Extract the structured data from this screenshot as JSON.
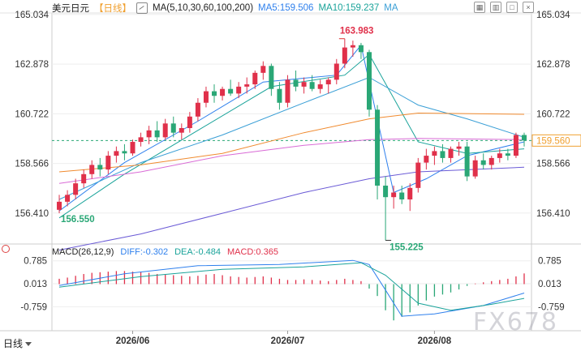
{
  "header": {
    "title": "美元日元",
    "period_tag": "【日线】",
    "ma_label": "MA(5,10,30,60,100,200)",
    "ma5": "MA5:159.506",
    "ma10": "MA10:159.237",
    "ma_more": "MA"
  },
  "macd_header": {
    "label": "MACD(26,12,9)",
    "diff": "DIFF:-0.302",
    "dea": "DEA:-0.484",
    "macd": "MACD:0.365"
  },
  "footer": {
    "period_selector": "日线",
    "watermark": "FX678"
  },
  "colors": {
    "up": "#e0304a",
    "down": "#2aa776",
    "ma5": "#2f80ed",
    "ma10": "#1aa39a",
    "ma30": "#3a9fd6",
    "ma60": "#f08a2e",
    "ma100": "#d96bd6",
    "ma200": "#6b5bd6",
    "current_price": "#f0a030"
  },
  "chart_data": {
    "type": "candlestick",
    "price_axis": {
      "ylim": [
        155.1,
        165.1
      ],
      "ticks": [
        "165.034",
        "162.878",
        "160.722",
        "158.566",
        "156.410"
      ],
      "tick_values": [
        165.034,
        162.878,
        160.722,
        158.566,
        156.41
      ]
    },
    "current_price": {
      "value": 159.56,
      "label": "159.560"
    },
    "annotations": [
      {
        "text": "163.983",
        "value": 163.983,
        "kind": "high"
      },
      {
        "text": "156.550",
        "value": 156.55,
        "kind": "low-start"
      },
      {
        "text": "155.225",
        "value": 155.225,
        "kind": "low"
      }
    ],
    "x_labels": [
      "2026/06",
      "2026/07",
      "2026/08"
    ],
    "x_label_positions": [
      9,
      28,
      46
    ],
    "candles": [
      [
        156.55,
        157.2,
        156.4,
        156.9
      ],
      [
        156.9,
        157.4,
        156.7,
        157.2
      ],
      [
        157.2,
        157.9,
        157.0,
        157.7
      ],
      [
        157.7,
        158.3,
        157.5,
        158.1
      ],
      [
        158.1,
        158.7,
        157.9,
        158.5
      ],
      [
        158.5,
        158.8,
        158.0,
        158.3
      ],
      [
        158.3,
        159.1,
        158.1,
        158.9
      ],
      [
        158.9,
        159.3,
        158.6,
        159.1
      ],
      [
        159.1,
        159.4,
        158.7,
        159.0
      ],
      [
        159.0,
        159.6,
        158.9,
        159.5
      ],
      [
        159.5,
        159.9,
        159.3,
        159.7
      ],
      [
        159.7,
        160.2,
        159.4,
        160.0
      ],
      [
        160.0,
        160.4,
        159.5,
        159.7
      ],
      [
        159.7,
        160.5,
        159.6,
        160.3
      ],
      [
        160.3,
        160.6,
        159.7,
        159.9
      ],
      [
        159.9,
        160.3,
        159.6,
        160.1
      ],
      [
        160.1,
        160.8,
        159.9,
        160.6
      ],
      [
        160.6,
        161.4,
        160.4,
        161.2
      ],
      [
        161.2,
        161.9,
        161.0,
        161.7
      ],
      [
        161.7,
        162.0,
        161.2,
        161.5
      ],
      [
        161.5,
        161.9,
        161.3,
        161.8
      ],
      [
        161.8,
        162.2,
        161.5,
        161.6
      ],
      [
        161.6,
        162.1,
        161.4,
        161.9
      ],
      [
        161.9,
        162.3,
        161.6,
        162.0
      ],
      [
        162.0,
        162.6,
        161.8,
        162.5
      ],
      [
        162.5,
        163.0,
        162.2,
        162.8
      ],
      [
        162.8,
        162.9,
        161.5,
        161.8
      ],
      [
        161.8,
        162.1,
        160.9,
        161.2
      ],
      [
        161.2,
        162.4,
        161.0,
        162.2
      ],
      [
        162.2,
        162.6,
        161.7,
        161.9
      ],
      [
        161.9,
        162.3,
        161.6,
        162.1
      ],
      [
        162.1,
        162.4,
        161.7,
        161.8
      ],
      [
        161.8,
        162.2,
        161.6,
        162.0
      ],
      [
        162.0,
        162.3,
        161.6,
        162.2
      ],
      [
        162.2,
        163.1,
        162.0,
        162.9
      ],
      [
        162.9,
        163.983,
        162.7,
        163.6
      ],
      [
        163.6,
        163.9,
        163.2,
        163.7
      ],
      [
        163.7,
        163.8,
        163.1,
        163.4
      ],
      [
        163.4,
        163.5,
        160.6,
        160.9
      ],
      [
        160.9,
        161.1,
        157.0,
        157.6
      ],
      [
        157.6,
        158.0,
        155.225,
        157.1
      ],
      [
        157.1,
        157.6,
        156.6,
        157.3
      ],
      [
        157.3,
        157.6,
        156.8,
        157.0
      ],
      [
        157.0,
        157.7,
        156.5,
        157.5
      ],
      [
        157.5,
        158.8,
        157.3,
        158.6
      ],
      [
        158.6,
        159.2,
        158.3,
        158.9
      ],
      [
        158.9,
        159.3,
        158.5,
        159.1
      ],
      [
        159.1,
        159.4,
        158.6,
        158.8
      ],
      [
        158.8,
        159.3,
        158.6,
        159.2
      ],
      [
        159.2,
        159.5,
        158.9,
        159.3
      ],
      [
        159.3,
        159.5,
        157.8,
        158.0
      ],
      [
        158.0,
        158.9,
        157.9,
        158.7
      ],
      [
        158.7,
        159.0,
        158.3,
        158.5
      ],
      [
        158.5,
        158.9,
        158.3,
        158.8
      ],
      [
        158.8,
        159.2,
        158.6,
        159.0
      ],
      [
        159.0,
        159.2,
        158.7,
        158.9
      ],
      [
        158.9,
        159.9,
        158.8,
        159.8
      ],
      [
        159.8,
        159.9,
        159.3,
        159.56
      ]
    ],
    "moving_averages": [
      {
        "name": "MA5",
        "color_key": "ma5",
        "points": [
          [
            0,
            156.5
          ],
          [
            8,
            158.6
          ],
          [
            17,
            160.4
          ],
          [
            25,
            162.1
          ],
          [
            34,
            162.4
          ],
          [
            37,
            163.7
          ],
          [
            41,
            157.3
          ],
          [
            45,
            157.9
          ],
          [
            50,
            158.9
          ],
          [
            57,
            159.5
          ]
        ]
      },
      {
        "name": "MA10",
        "color_key": "ma10",
        "points": [
          [
            0,
            156.2
          ],
          [
            8,
            158.1
          ],
          [
            17,
            160.0
          ],
          [
            26,
            161.9
          ],
          [
            35,
            162.4
          ],
          [
            38,
            163.3
          ],
          [
            44,
            159.5
          ],
          [
            50,
            159.0
          ],
          [
            57,
            159.2
          ]
        ]
      },
      {
        "name": "MA30",
        "color_key": "ma30",
        "points": [
          [
            0,
            157.0
          ],
          [
            10,
            158.6
          ],
          [
            20,
            159.8
          ],
          [
            30,
            161.2
          ],
          [
            38,
            162.3
          ],
          [
            44,
            161.1
          ],
          [
            50,
            160.5
          ],
          [
            57,
            159.7
          ]
        ]
      },
      {
        "name": "MA60",
        "color_key": "ma60",
        "points": [
          [
            0,
            158.2
          ],
          [
            10,
            158.5
          ],
          [
            20,
            159.0
          ],
          [
            30,
            159.9
          ],
          [
            38,
            160.5
          ],
          [
            44,
            160.75
          ],
          [
            57,
            160.7
          ]
        ]
      },
      {
        "name": "MA100",
        "color_key": "ma100",
        "points": [
          [
            0,
            157.7
          ],
          [
            10,
            158.2
          ],
          [
            20,
            158.9
          ],
          [
            30,
            159.35
          ],
          [
            38,
            159.6
          ],
          [
            44,
            159.65
          ],
          [
            57,
            159.6
          ]
        ]
      },
      {
        "name": "MA200",
        "color_key": "ma200",
        "points": [
          [
            0,
            154.8
          ],
          [
            10,
            155.5
          ],
          [
            20,
            156.4
          ],
          [
            30,
            157.3
          ],
          [
            38,
            157.9
          ],
          [
            44,
            158.2
          ],
          [
            57,
            158.4
          ]
        ]
      }
    ],
    "macd": {
      "ylim": [
        -1.35,
        1.05
      ],
      "ticks": [
        "0.785",
        "0.013",
        "-0.759"
      ],
      "tick_values": [
        0.785,
        0.013,
        -0.759
      ],
      "histogram": [
        0.18,
        0.22,
        0.28,
        0.34,
        0.38,
        0.4,
        0.42,
        0.44,
        0.44,
        0.42,
        0.4,
        0.38,
        0.34,
        0.32,
        0.3,
        0.28,
        0.26,
        0.28,
        0.32,
        0.34,
        0.3,
        0.26,
        0.24,
        0.22,
        0.24,
        0.26,
        0.22,
        0.18,
        0.14,
        0.14,
        0.16,
        0.14,
        0.12,
        0.1,
        0.14,
        0.18,
        0.14,
        0.1,
        -0.15,
        -0.4,
        -0.88,
        -1.22,
        -1.1,
        -0.95,
        -0.72,
        -0.55,
        -0.42,
        -0.35,
        -0.28,
        -0.18,
        -0.06,
        0.02,
        0.06,
        0.1,
        0.14,
        0.18,
        0.26,
        0.36
      ],
      "diff": [
        [
          0,
          -0.05
        ],
        [
          8,
          0.35
        ],
        [
          17,
          0.62
        ],
        [
          27,
          0.66
        ],
        [
          36,
          0.8
        ],
        [
          38,
          0.66
        ],
        [
          40,
          -0.2
        ],
        [
          42,
          -1.08
        ],
        [
          46,
          -1.0
        ],
        [
          52,
          -0.72
        ],
        [
          57,
          -0.3
        ]
      ],
      "dea": [
        [
          0,
          -0.1
        ],
        [
          10,
          0.25
        ],
        [
          20,
          0.5
        ],
        [
          30,
          0.58
        ],
        [
          37,
          0.72
        ],
        [
          40,
          0.3
        ],
        [
          44,
          -0.64
        ],
        [
          48,
          -0.88
        ],
        [
          53,
          -0.68
        ],
        [
          57,
          -0.48
        ]
      ]
    }
  }
}
